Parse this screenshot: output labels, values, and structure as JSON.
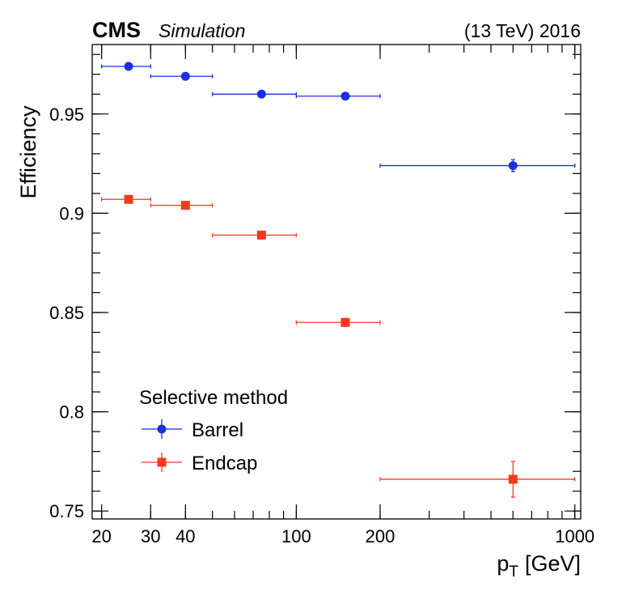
{
  "header": {
    "experiment": "CMS",
    "tag": "Simulation",
    "energy": "(13 TeV) 2016"
  },
  "legend": {
    "title": "Selective method"
  },
  "chart_data": {
    "type": "scatter",
    "xlabel_main": "p",
    "xlabel_sub": "T",
    "xlabel_unit": "[GeV]",
    "ylabel": "Efficiency",
    "x_scale": "log",
    "xlim": [
      18.5,
      1050
    ],
    "ylim": [
      0.746,
      0.985
    ],
    "x_ticks": [
      {
        "value": 20,
        "label": "20"
      },
      {
        "value": 30,
        "label": "30"
      },
      {
        "value": 40,
        "label": "40"
      },
      {
        "value": 100,
        "label": "100"
      },
      {
        "value": 200,
        "label": "200"
      },
      {
        "value": 1000,
        "label": "1000"
      }
    ],
    "y_ticks": [
      {
        "value": 0.75,
        "label": "0.75"
      },
      {
        "value": 0.8,
        "label": "0.8"
      },
      {
        "value": 0.85,
        "label": "0.85"
      },
      {
        "value": 0.9,
        "label": "0.9"
      },
      {
        "value": 0.95,
        "label": "0.95"
      }
    ],
    "legend_position": "bottom-left",
    "series": [
      {
        "name": "Barrel",
        "color": "#1a2fe6",
        "marker": "circle",
        "points": [
          {
            "x": 25,
            "x_low": 20,
            "x_high": 30,
            "y": 0.974,
            "y_err": 0.001
          },
          {
            "x": 40,
            "x_low": 30,
            "x_high": 50,
            "y": 0.969,
            "y_err": 0.001
          },
          {
            "x": 75,
            "x_low": 50,
            "x_high": 100,
            "y": 0.96,
            "y_err": 0.001
          },
          {
            "x": 150,
            "x_low": 100,
            "x_high": 200,
            "y": 0.959,
            "y_err": 0.001
          },
          {
            "x": 600,
            "x_low": 200,
            "x_high": 1000,
            "y": 0.924,
            "y_err": 0.003
          }
        ]
      },
      {
        "name": "Endcap",
        "color": "#f03a1e",
        "marker": "square",
        "points": [
          {
            "x": 25,
            "x_low": 20,
            "x_high": 30,
            "y": 0.907,
            "y_err": 0.001
          },
          {
            "x": 40,
            "x_low": 30,
            "x_high": 50,
            "y": 0.904,
            "y_err": 0.001
          },
          {
            "x": 75,
            "x_low": 50,
            "x_high": 100,
            "y": 0.889,
            "y_err": 0.001
          },
          {
            "x": 150,
            "x_low": 100,
            "x_high": 200,
            "y": 0.845,
            "y_err": 0.002
          },
          {
            "x": 600,
            "x_low": 200,
            "x_high": 1000,
            "y": 0.766,
            "y_err": 0.009
          }
        ]
      }
    ]
  }
}
